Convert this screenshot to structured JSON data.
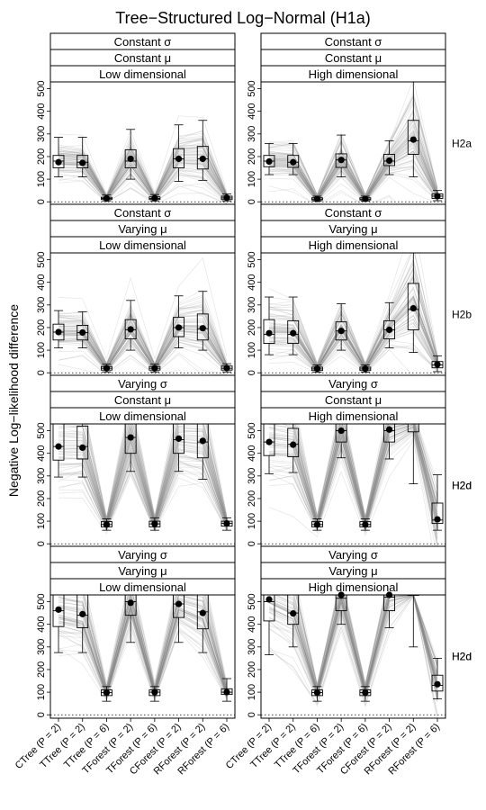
{
  "chart_data": {
    "type": "box",
    "title": "Tree−Structured Log−Normal (H1a)",
    "ylabel": "Negative Log−likelihood difference",
    "xlabel": "",
    "ylim": [
      -15,
      530
    ],
    "y_ticks": [
      0,
      100,
      200,
      300,
      400,
      500
    ],
    "grid": false,
    "categories": [
      "CTree (P = 2)",
      "TTree (P = 2)",
      "TTree (P = 6)",
      "TForest (P = 2)",
      "TForest (P = 6)",
      "CForest (P = 2)",
      "RForest (P = 2)",
      "RForest (P = 6)"
    ],
    "panels": [
      {
        "strips": [
          "Constant σ",
          "Constant μ",
          "Low dimensional"
        ],
        "row_label": "H2a",
        "boxes": [
          {
            "q1": 150,
            "median": 180,
            "q3": 205,
            "wlo": 110,
            "whi": 285,
            "mean": 175
          },
          {
            "q1": 150,
            "median": 175,
            "q3": 205,
            "wlo": 110,
            "whi": 285,
            "mean": 172
          },
          {
            "q1": 10,
            "median": 15,
            "q3": 20,
            "wlo": 4,
            "whi": 30,
            "mean": 15
          },
          {
            "q1": 150,
            "median": 180,
            "q3": 230,
            "wlo": 100,
            "whi": 320,
            "mean": 190
          },
          {
            "q1": 10,
            "median": 15,
            "q3": 22,
            "wlo": 4,
            "whi": 32,
            "mean": 16
          },
          {
            "q1": 150,
            "median": 190,
            "q3": 235,
            "wlo": 90,
            "whi": 340,
            "mean": 190
          },
          {
            "q1": 145,
            "median": 190,
            "q3": 245,
            "wlo": 95,
            "whi": 360,
            "mean": 190
          },
          {
            "q1": 10,
            "median": 17,
            "q3": 25,
            "wlo": 4,
            "whi": 35,
            "mean": 18
          }
        ]
      },
      {
        "strips": [
          "Constant σ",
          "Constant μ",
          "High dimensional"
        ],
        "row_label": "",
        "boxes": [
          {
            "q1": 155,
            "median": 180,
            "q3": 205,
            "wlo": 120,
            "whi": 258,
            "mean": 178
          },
          {
            "q1": 152,
            "median": 175,
            "q3": 205,
            "wlo": 120,
            "whi": 258,
            "mean": 175
          },
          {
            "q1": 8,
            "median": 12,
            "q3": 18,
            "wlo": 3,
            "whi": 25,
            "mean": 13
          },
          {
            "q1": 152,
            "median": 185,
            "q3": 212,
            "wlo": 110,
            "whi": 295,
            "mean": 185
          },
          {
            "q1": 8,
            "median": 12,
            "q3": 18,
            "wlo": 3,
            "whi": 25,
            "mean": 13
          },
          {
            "q1": 160,
            "median": 180,
            "q3": 210,
            "wlo": 120,
            "whi": 270,
            "mean": 182
          },
          {
            "q1": 210,
            "median": 270,
            "q3": 360,
            "wlo": 110,
            "whi": 530,
            "mean": 275
          },
          {
            "q1": 15,
            "median": 25,
            "q3": 35,
            "wlo": 5,
            "whi": 50,
            "mean": 25
          }
        ]
      },
      {
        "strips": [
          "Constant σ",
          "Varying μ",
          "Low dimensional"
        ],
        "row_label": "H2b",
        "boxes": [
          {
            "q1": 145,
            "median": 180,
            "q3": 215,
            "wlo": 110,
            "whi": 275,
            "mean": 180
          },
          {
            "q1": 145,
            "median": 178,
            "q3": 210,
            "wlo": 110,
            "whi": 270,
            "mean": 178
          },
          {
            "q1": 12,
            "median": 20,
            "q3": 28,
            "wlo": 4,
            "whi": 38,
            "mean": 20
          },
          {
            "q1": 150,
            "median": 190,
            "q3": 235,
            "wlo": 100,
            "whi": 320,
            "mean": 192
          },
          {
            "q1": 12,
            "median": 20,
            "q3": 28,
            "wlo": 4,
            "whi": 38,
            "mean": 20
          },
          {
            "q1": 160,
            "median": 200,
            "q3": 245,
            "wlo": 110,
            "whi": 340,
            "mean": 200
          },
          {
            "q1": 145,
            "median": 195,
            "q3": 260,
            "wlo": 100,
            "whi": 360,
            "mean": 197
          },
          {
            "q1": 12,
            "median": 20,
            "q3": 30,
            "wlo": 4,
            "whi": 40,
            "mean": 21
          }
        ]
      },
      {
        "strips": [
          "Constant σ",
          "Varying μ",
          "High dimensional"
        ],
        "row_label": "",
        "boxes": [
          {
            "q1": 130,
            "median": 170,
            "q3": 235,
            "wlo": 80,
            "whi": 335,
            "mean": 175
          },
          {
            "q1": 130,
            "median": 170,
            "q3": 230,
            "wlo": 80,
            "whi": 335,
            "mean": 175
          },
          {
            "q1": 10,
            "median": 17,
            "q3": 25,
            "wlo": 3,
            "whi": 35,
            "mean": 18
          },
          {
            "q1": 145,
            "median": 185,
            "q3": 225,
            "wlo": 100,
            "whi": 305,
            "mean": 185
          },
          {
            "q1": 10,
            "median": 17,
            "q3": 25,
            "wlo": 3,
            "whi": 35,
            "mean": 18
          },
          {
            "q1": 150,
            "median": 190,
            "q3": 230,
            "wlo": 110,
            "whi": 310,
            "mean": 190
          },
          {
            "q1": 190,
            "median": 280,
            "q3": 395,
            "wlo": 90,
            "whi": 530,
            "mean": 285
          },
          {
            "q1": 22,
            "median": 35,
            "q3": 50,
            "wlo": 5,
            "whi": 75,
            "mean": 37
          }
        ]
      },
      {
        "strips": [
          "Varying σ",
          "Constant μ",
          "Low dimensional"
        ],
        "row_label": "H2d",
        "boxes": [
          {
            "q1": 370,
            "median": 430,
            "q3": 530,
            "wlo": 295,
            "whi": 530,
            "mean": 430
          },
          {
            "q1": 375,
            "median": 430,
            "q3": 520,
            "wlo": 295,
            "whi": 530,
            "mean": 425
          },
          {
            "q1": 75,
            "median": 85,
            "q3": 98,
            "wlo": 60,
            "whi": 110,
            "mean": 85
          },
          {
            "q1": 400,
            "median": 470,
            "q3": 530,
            "wlo": 320,
            "whi": 530,
            "mean": 470
          },
          {
            "q1": 75,
            "median": 88,
            "q3": 100,
            "wlo": 60,
            "whi": 115,
            "mean": 88
          },
          {
            "q1": 400,
            "median": 460,
            "q3": 530,
            "wlo": 320,
            "whi": 530,
            "mean": 465
          },
          {
            "q1": 380,
            "median": 450,
            "q3": 530,
            "wlo": 285,
            "whi": 530,
            "mean": 455
          },
          {
            "q1": 78,
            "median": 90,
            "q3": 100,
            "wlo": 60,
            "whi": 115,
            "mean": 90
          }
        ]
      },
      {
        "strips": [
          "Varying σ",
          "Constant μ",
          "High dimensional"
        ],
        "row_label": "H2d",
        "boxes": [
          {
            "q1": 390,
            "median": 450,
            "q3": 530,
            "wlo": 310,
            "whi": 530,
            "mean": 450
          },
          {
            "q1": 385,
            "median": 440,
            "q3": 510,
            "wlo": 315,
            "whi": 530,
            "mean": 438
          },
          {
            "q1": 75,
            "median": 85,
            "q3": 98,
            "wlo": 60,
            "whi": 110,
            "mean": 85
          },
          {
            "q1": 450,
            "median": 500,
            "q3": 530,
            "wlo": 380,
            "whi": 530,
            "mean": 500
          },
          {
            "q1": 75,
            "median": 85,
            "q3": 98,
            "wlo": 60,
            "whi": 110,
            "mean": 85
          },
          {
            "q1": 450,
            "median": 500,
            "q3": 530,
            "wlo": 375,
            "whi": 530,
            "mean": 505
          },
          {
            "q1": 495,
            "median": 530,
            "q3": 530,
            "wlo": 265,
            "whi": 530,
            "mean": 540
          },
          {
            "q1": 90,
            "median": 105,
            "q3": 180,
            "wlo": 60,
            "whi": 305,
            "mean": 108
          }
        ]
      },
      {
        "strips": [
          "Varying σ",
          "Varying μ",
          "Low dimensional"
        ],
        "row_label": "H2d",
        "boxes": [
          {
            "q1": 390,
            "median": 460,
            "q3": 530,
            "wlo": 275,
            "whi": 530,
            "mean": 465
          },
          {
            "q1": 385,
            "median": 440,
            "q3": 530,
            "wlo": 275,
            "whi": 530,
            "mean": 445
          },
          {
            "q1": 85,
            "median": 98,
            "q3": 110,
            "wlo": 60,
            "whi": 125,
            "mean": 98
          },
          {
            "q1": 440,
            "median": 500,
            "q3": 530,
            "wlo": 320,
            "whi": 530,
            "mean": 495
          },
          {
            "q1": 85,
            "median": 100,
            "q3": 110,
            "wlo": 60,
            "whi": 125,
            "mean": 100
          },
          {
            "q1": 430,
            "median": 490,
            "q3": 530,
            "wlo": 320,
            "whi": 530,
            "mean": 490
          },
          {
            "q1": 380,
            "median": 455,
            "q3": 530,
            "wlo": 275,
            "whi": 530,
            "mean": 450
          },
          {
            "q1": 90,
            "median": 100,
            "q3": 115,
            "wlo": 60,
            "whi": 160,
            "mean": 100
          }
        ]
      },
      {
        "strips": [
          "Varying σ",
          "Varying μ",
          "High dimensional"
        ],
        "row_label": "H2d",
        "boxes": [
          {
            "q1": 415,
            "median": 500,
            "q3": 530,
            "wlo": 265,
            "whi": 530,
            "mean": 510
          },
          {
            "q1": 400,
            "median": 450,
            "q3": 530,
            "wlo": 300,
            "whi": 530,
            "mean": 448
          },
          {
            "q1": 85,
            "median": 98,
            "q3": 110,
            "wlo": 60,
            "whi": 125,
            "mean": 98
          },
          {
            "q1": 460,
            "median": 515,
            "q3": 530,
            "wlo": 400,
            "whi": 530,
            "mean": 530
          },
          {
            "q1": 85,
            "median": 98,
            "q3": 110,
            "wlo": 60,
            "whi": 125,
            "mean": 98
          },
          {
            "q1": 460,
            "median": 520,
            "q3": 530,
            "wlo": 385,
            "whi": 530,
            "mean": 530
          },
          {
            "q1": 530,
            "median": 530,
            "q3": 530,
            "wlo": 300,
            "whi": 530,
            "mean": 560
          },
          {
            "q1": 105,
            "median": 130,
            "q3": 175,
            "wlo": 70,
            "whi": 250,
            "mean": 135
          }
        ]
      }
    ]
  }
}
